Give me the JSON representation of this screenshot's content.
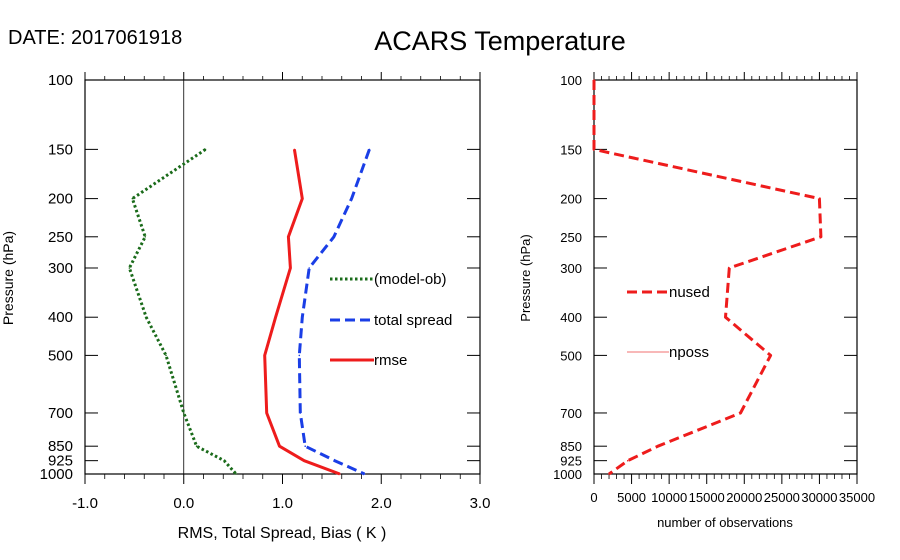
{
  "date_label": "DATE: 2017061918",
  "chart_data": [
    {
      "type": "line",
      "title": "ACARS Temperature",
      "xlabel": "RMS, Total Spread, Bias ( K )",
      "ylabel": "Pressure (hPa)",
      "xlim": [
        -1.0,
        3.0
      ],
      "ylim": [
        1000,
        100
      ],
      "yscale": "log",
      "xticks": [
        "-1.0",
        "0.0",
        "1.0",
        "2.0",
        "3.0"
      ],
      "yticks": [
        "100",
        "150",
        "200",
        "250",
        "300",
        "400",
        "500",
        "700",
        "850",
        "925",
        "1000"
      ],
      "pressure": [
        150,
        200,
        250,
        300,
        400,
        500,
        700,
        850,
        925,
        1000
      ],
      "series": [
        {
          "name": "(model-ob)",
          "style": "dotted",
          "color": "#1a6b1a",
          "values": [
            0.22,
            -0.52,
            -0.39,
            -0.55,
            -0.38,
            -0.18,
            0.0,
            0.13,
            0.41,
            0.53
          ]
        },
        {
          "name": "total spread",
          "style": "dashed",
          "color": "#1a3ee6",
          "values": [
            1.88,
            1.7,
            1.52,
            1.27,
            1.2,
            1.17,
            1.18,
            1.23,
            1.53,
            1.83
          ]
        },
        {
          "name": "rmse",
          "style": "solid",
          "color": "#ee1c1c",
          "values": [
            1.12,
            1.2,
            1.06,
            1.08,
            0.93,
            0.82,
            0.84,
            0.97,
            1.22,
            1.58
          ]
        }
      ],
      "vline_x": 0.0,
      "legend_position": "center-right"
    },
    {
      "type": "line",
      "title": "",
      "xlabel": "number of observations",
      "ylabel": "Pressure (hPa)",
      "xlim": [
        0,
        35000
      ],
      "ylim": [
        1000,
        100
      ],
      "yscale": "log",
      "xticks": [
        "0",
        "5000",
        "10000",
        "15000",
        "20000",
        "25000",
        "30000",
        "35000"
      ],
      "yticks": [
        "100",
        "150",
        "200",
        "250",
        "300",
        "400",
        "500",
        "700",
        "850",
        "925",
        "1000"
      ],
      "pressure": [
        100,
        150,
        200,
        250,
        300,
        400,
        500,
        700,
        850,
        925,
        1000
      ],
      "series": [
        {
          "name": "nused",
          "style": "dashed",
          "color": "#ee1c1c",
          "values": [
            0,
            0,
            30000,
            30200,
            18000,
            17500,
            23500,
            19500,
            8500,
            4500,
            2000
          ]
        },
        {
          "name": "nposs",
          "style": "thin",
          "color": "#f07070",
          "values": []
        }
      ],
      "legend_position": "center-left"
    }
  ]
}
